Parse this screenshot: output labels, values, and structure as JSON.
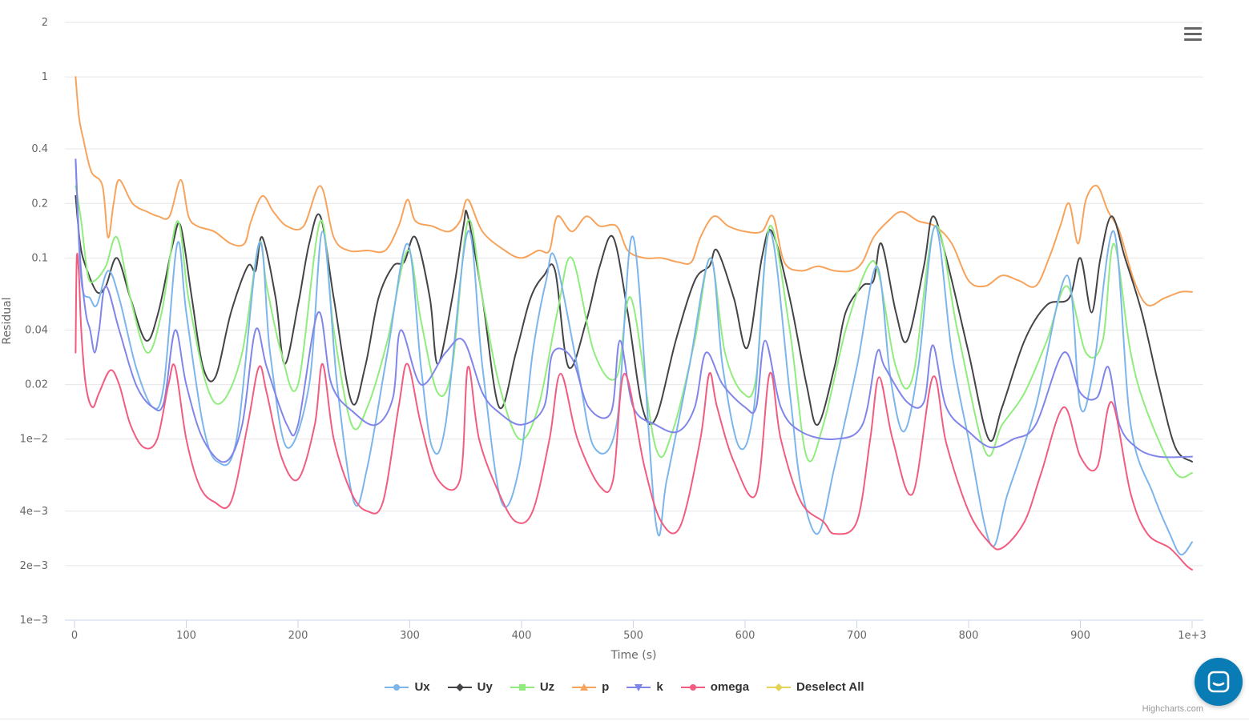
{
  "chart_data": {
    "type": "line",
    "title": "",
    "xlabel": "Time (s)",
    "ylabel": "Residual",
    "xscale": "linear",
    "yscale": "log",
    "xlim": [
      0,
      1000
    ],
    "ylim": [
      0.001,
      2
    ],
    "xticks": [
      0,
      100,
      200,
      300,
      400,
      500,
      600,
      700,
      800,
      900,
      1000
    ],
    "xtick_labels": [
      "0",
      "100",
      "200",
      "300",
      "400",
      "500",
      "600",
      "700",
      "800",
      "900",
      "1e+3"
    ],
    "yticks": [
      0.001,
      0.002,
      0.004,
      0.01,
      0.02,
      0.04,
      0.1,
      0.2,
      0.4,
      1,
      2
    ],
    "ytick_labels": [
      "1e−3",
      "2e−3",
      "4e−3",
      "1e−2",
      "0.02",
      "0.04",
      "0.1",
      "0.2",
      "0.4",
      "1",
      "2"
    ],
    "grid": true,
    "legend_position": "bottom-center",
    "series": [
      {
        "name": "Ux",
        "color": "#7cb5ec",
        "marker": "circle",
        "x": [
          1,
          6,
          14,
          20,
          30,
          40,
          55,
          70,
          80,
          92,
          100,
          115,
          128,
          145,
          165,
          175,
          190,
          210,
          222,
          235,
          250,
          262,
          280,
          298,
          310,
          320,
          332,
          352,
          365,
          382,
          398,
          410,
          422,
          430,
          450,
          465,
          485,
          500,
          520,
          530,
          550,
          569,
          580,
          595,
          608,
          622,
          640,
          650,
          665,
          680,
          700,
          718,
          730,
          742,
          755,
          770,
          785,
          800,
          820,
          835,
          860,
          888,
          900,
          912,
          930,
          945,
          965,
          980,
          990,
          1000
        ],
        "y": [
          0.35,
          0.075,
          0.06,
          0.055,
          0.085,
          0.06,
          0.025,
          0.015,
          0.02,
          0.12,
          0.05,
          0.012,
          0.0075,
          0.01,
          0.12,
          0.03,
          0.009,
          0.02,
          0.14,
          0.02,
          0.0045,
          0.007,
          0.03,
          0.12,
          0.025,
          0.009,
          0.012,
          0.14,
          0.025,
          0.0045,
          0.007,
          0.03,
          0.075,
          0.1,
          0.025,
          0.009,
          0.012,
          0.13,
          0.0035,
          0.006,
          0.025,
          0.1,
          0.025,
          0.009,
          0.015,
          0.14,
          0.018,
          0.0055,
          0.003,
          0.007,
          0.025,
          0.09,
          0.022,
          0.011,
          0.025,
          0.15,
          0.03,
          0.01,
          0.0026,
          0.005,
          0.015,
          0.08,
          0.015,
          0.025,
          0.14,
          0.012,
          0.005,
          0.003,
          0.0023,
          0.0027
        ]
      },
      {
        "name": "Uy",
        "color": "#434348",
        "marker": "diamond",
        "x": [
          1,
          5,
          10,
          20,
          28,
          38,
          50,
          64,
          75,
          88,
          95,
          105,
          115,
          126,
          140,
          155,
          162,
          168,
          180,
          188,
          200,
          210,
          220,
          232,
          248,
          260,
          272,
          285,
          295,
          305,
          318,
          325,
          338,
          348,
          352,
          365,
          380,
          395,
          408,
          420,
          430,
          442,
          458,
          470,
          482,
          495,
          508,
          520,
          538,
          555,
          568,
          575,
          590,
          602,
          615,
          624,
          640,
          655,
          665,
          680,
          690,
          705,
          715,
          722,
          735,
          745,
          760,
          768,
          780,
          800,
          818,
          830,
          850,
          870,
          890,
          900,
          910,
          918,
          928,
          940,
          955,
          970,
          985,
          1000
        ],
        "y": [
          0.22,
          0.12,
          0.09,
          0.065,
          0.07,
          0.1,
          0.06,
          0.035,
          0.05,
          0.12,
          0.15,
          0.06,
          0.025,
          0.022,
          0.05,
          0.09,
          0.085,
          0.13,
          0.06,
          0.026,
          0.055,
          0.12,
          0.17,
          0.06,
          0.016,
          0.025,
          0.06,
          0.09,
          0.095,
          0.13,
          0.06,
          0.026,
          0.06,
          0.15,
          0.17,
          0.06,
          0.015,
          0.03,
          0.06,
          0.08,
          0.085,
          0.025,
          0.045,
          0.09,
          0.13,
          0.05,
          0.015,
          0.013,
          0.035,
          0.075,
          0.09,
          0.11,
          0.06,
          0.032,
          0.1,
          0.14,
          0.06,
          0.02,
          0.012,
          0.025,
          0.05,
          0.07,
          0.075,
          0.12,
          0.05,
          0.035,
          0.09,
          0.17,
          0.1,
          0.03,
          0.01,
          0.015,
          0.035,
          0.055,
          0.06,
          0.1,
          0.05,
          0.1,
          0.17,
          0.1,
          0.05,
          0.02,
          0.009,
          0.0075
        ]
      },
      {
        "name": "Uz",
        "color": "#90ed7d",
        "marker": "square",
        "x": [
          1,
          6,
          12,
          18,
          28,
          38,
          50,
          65,
          78,
          92,
          102,
          118,
          132,
          150,
          165,
          172,
          185,
          200,
          220,
          232,
          248,
          262,
          280,
          298,
          310,
          325,
          338,
          352,
          365,
          380,
          398,
          415,
          432,
          445,
          465,
          485,
          498,
          520,
          535,
          555,
          569,
          582,
          598,
          610,
          622,
          640,
          655,
          670,
          690,
          710,
          720,
          735,
          750,
          770,
          790,
          815,
          830,
          850,
          870,
          888,
          905,
          920,
          930,
          945,
          960,
          985,
          1000
        ],
        "y": [
          0.25,
          0.16,
          0.08,
          0.075,
          0.09,
          0.13,
          0.06,
          0.03,
          0.05,
          0.16,
          0.06,
          0.02,
          0.016,
          0.03,
          0.12,
          0.07,
          0.03,
          0.02,
          0.16,
          0.04,
          0.012,
          0.015,
          0.035,
          0.11,
          0.045,
          0.018,
          0.025,
          0.16,
          0.06,
          0.02,
          0.01,
          0.015,
          0.05,
          0.1,
          0.03,
          0.022,
          0.06,
          0.009,
          0.011,
          0.035,
          0.1,
          0.03,
          0.018,
          0.022,
          0.15,
          0.04,
          0.008,
          0.012,
          0.04,
          0.09,
          0.08,
          0.025,
          0.022,
          0.15,
          0.04,
          0.0085,
          0.012,
          0.018,
          0.035,
          0.07,
          0.03,
          0.035,
          0.12,
          0.03,
          0.014,
          0.0065,
          0.0065
        ]
      },
      {
        "name": "p",
        "color": "#f7a35c",
        "marker": "triangle",
        "x": [
          1,
          4,
          8,
          15,
          25,
          30,
          35,
          40,
          52,
          65,
          75,
          85,
          95,
          102,
          110,
          125,
          140,
          152,
          158,
          168,
          178,
          190,
          205,
          220,
          232,
          245,
          262,
          278,
          290,
          298,
          305,
          320,
          335,
          345,
          352,
          365,
          385,
          400,
          415,
          425,
          432,
          445,
          458,
          470,
          485,
          495,
          510,
          525,
          540,
          552,
          560,
          572,
          585,
          600,
          615,
          625,
          635,
          650,
          665,
          680,
          695,
          705,
          715,
          728,
          740,
          755,
          770,
          785,
          800,
          815,
          830,
          845,
          860,
          872,
          882,
          890,
          898,
          905,
          915,
          925,
          935,
          948,
          960,
          975,
          990,
          1000
        ],
        "y": [
          1.0,
          0.6,
          0.45,
          0.3,
          0.25,
          0.13,
          0.2,
          0.27,
          0.2,
          0.18,
          0.17,
          0.17,
          0.27,
          0.17,
          0.15,
          0.14,
          0.12,
          0.12,
          0.16,
          0.22,
          0.18,
          0.15,
          0.15,
          0.25,
          0.13,
          0.11,
          0.11,
          0.11,
          0.15,
          0.21,
          0.16,
          0.15,
          0.14,
          0.16,
          0.21,
          0.14,
          0.11,
          0.1,
          0.11,
          0.11,
          0.17,
          0.14,
          0.17,
          0.15,
          0.15,
          0.11,
          0.1,
          0.1,
          0.095,
          0.095,
          0.13,
          0.17,
          0.15,
          0.14,
          0.14,
          0.17,
          0.095,
          0.085,
          0.09,
          0.085,
          0.085,
          0.095,
          0.13,
          0.16,
          0.18,
          0.16,
          0.15,
          0.12,
          0.075,
          0.07,
          0.08,
          0.075,
          0.07,
          0.1,
          0.15,
          0.2,
          0.12,
          0.21,
          0.25,
          0.18,
          0.14,
          0.075,
          0.055,
          0.06,
          0.065,
          0.065
        ]
      },
      {
        "name": "k",
        "color": "#8085e9",
        "marker": "triangle-down",
        "x": [
          1,
          5,
          10,
          14,
          18,
          22,
          28,
          40,
          55,
          70,
          80,
          90,
          100,
          115,
          135,
          150,
          162,
          172,
          190,
          200,
          218,
          230,
          250,
          270,
          285,
          292,
          310,
          332,
          348,
          365,
          380,
          400,
          420,
          428,
          445,
          460,
          480,
          488,
          500,
          520,
          540,
          555,
          565,
          580,
          600,
          610,
          618,
          632,
          650,
          680,
          705,
          718,
          725,
          745,
          760,
          768,
          780,
          800,
          820,
          840,
          860,
          885,
          900,
          915,
          925,
          935,
          950,
          970,
          1000
        ],
        "y": [
          0.35,
          0.1,
          0.05,
          0.04,
          0.03,
          0.04,
          0.07,
          0.04,
          0.02,
          0.015,
          0.016,
          0.04,
          0.02,
          0.01,
          0.0075,
          0.012,
          0.04,
          0.025,
          0.012,
          0.012,
          0.05,
          0.02,
          0.014,
          0.012,
          0.017,
          0.04,
          0.02,
          0.03,
          0.035,
          0.018,
          0.014,
          0.012,
          0.015,
          0.03,
          0.028,
          0.015,
          0.014,
          0.035,
          0.015,
          0.012,
          0.011,
          0.015,
          0.03,
          0.02,
          0.015,
          0.015,
          0.035,
          0.015,
          0.011,
          0.01,
          0.012,
          0.03,
          0.025,
          0.016,
          0.016,
          0.033,
          0.015,
          0.011,
          0.009,
          0.01,
          0.012,
          0.03,
          0.018,
          0.017,
          0.025,
          0.012,
          0.009,
          0.008,
          0.008
        ]
      },
      {
        "name": "omega",
        "color": "#f15c80",
        "marker": "circle",
        "x": [
          1,
          2,
          4,
          6,
          10,
          16,
          22,
          32,
          40,
          50,
          62,
          74,
          84,
          90,
          100,
          112,
          125,
          140,
          155,
          165,
          172,
          185,
          200,
          215,
          222,
          232,
          248,
          262,
          276,
          290,
          298,
          310,
          325,
          345,
          352,
          362,
          380,
          395,
          410,
          425,
          435,
          450,
          470,
          482,
          492,
          510,
          525,
          542,
          560,
          568,
          575,
          590,
          610,
          622,
          632,
          650,
          670,
          680,
          700,
          712,
          720,
          732,
          750,
          768,
          780,
          800,
          818,
          830,
          850,
          865,
          885,
          900,
          915,
          928,
          945,
          960,
          980,
          995,
          1000
        ],
        "y": [
          0.03,
          0.1,
          0.08,
          0.04,
          0.02,
          0.015,
          0.018,
          0.024,
          0.02,
          0.012,
          0.009,
          0.01,
          0.02,
          0.025,
          0.01,
          0.0055,
          0.0045,
          0.0045,
          0.012,
          0.025,
          0.018,
          0.008,
          0.006,
          0.012,
          0.026,
          0.01,
          0.005,
          0.004,
          0.0045,
          0.015,
          0.026,
          0.012,
          0.006,
          0.006,
          0.025,
          0.01,
          0.005,
          0.0035,
          0.004,
          0.01,
          0.023,
          0.01,
          0.0055,
          0.006,
          0.023,
          0.007,
          0.0035,
          0.0033,
          0.01,
          0.023,
          0.015,
          0.0075,
          0.005,
          0.023,
          0.01,
          0.0045,
          0.0035,
          0.003,
          0.0035,
          0.01,
          0.022,
          0.01,
          0.005,
          0.022,
          0.0095,
          0.004,
          0.0027,
          0.0025,
          0.0035,
          0.0065,
          0.015,
          0.008,
          0.007,
          0.016,
          0.005,
          0.003,
          0.0025,
          0.002,
          0.0019
        ]
      }
    ]
  },
  "legend": {
    "items": [
      {
        "label": "Ux",
        "color": "#7cb5ec",
        "marker": "circle"
      },
      {
        "label": "Uy",
        "color": "#434348",
        "marker": "diamond"
      },
      {
        "label": "Uz",
        "color": "#90ed7d",
        "marker": "square"
      },
      {
        "label": "p",
        "color": "#f7a35c",
        "marker": "triangle"
      },
      {
        "label": "k",
        "color": "#8085e9",
        "marker": "triangle-down"
      },
      {
        "label": "omega",
        "color": "#f15c80",
        "marker": "circle"
      },
      {
        "label": "Deselect All",
        "color": "#e4d354",
        "marker": "diamond"
      }
    ]
  },
  "toolbar": {
    "menu_icon": "hamburger-menu-icon"
  },
  "credits": "Highcharts.com",
  "chat_widget": {
    "icon": "chat-icon",
    "color": "#0a7cb5"
  }
}
